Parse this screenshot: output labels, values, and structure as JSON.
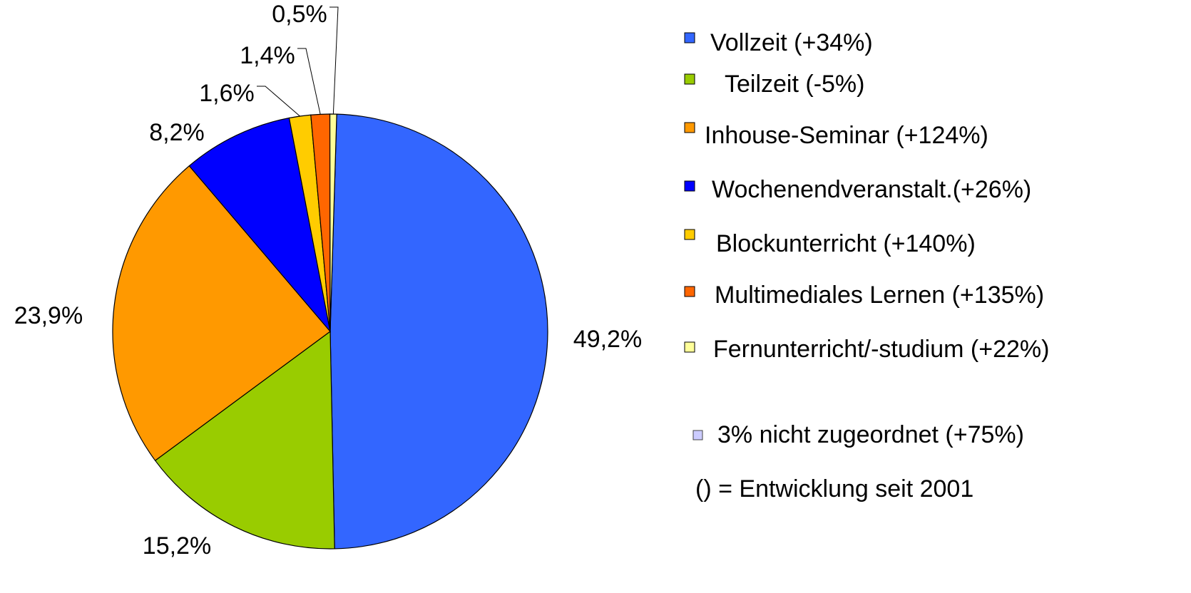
{
  "chart_data": {
    "type": "pie",
    "categories": [
      "Vollzeit (+34%)",
      "Teilzeit (-5%)",
      "Inhouse-Seminar (+124%)",
      "Wochenendveranstalt.(+26%)",
      "Blockunterricht (+140%)",
      "Multimediales Lernen (+135%)",
      "Fernunterricht/-studium (+22%)"
    ],
    "values": [
      49.2,
      15.2,
      23.9,
      8.2,
      1.6,
      1.4,
      0.5
    ],
    "value_labels": [
      "49,2%",
      "15,2%",
      "23,9%",
      "8,2%",
      "1,6%",
      "1,4%",
      "0,5%"
    ],
    "colors": [
      "#3366ff",
      "#99cc00",
      "#ff9900",
      "#0000ff",
      "#ffcc00",
      "#ff6600",
      "#ffff99"
    ],
    "legend_extra": {
      "text": "3% nicht zugeordnet (+75%)",
      "color": "#ccccff"
    },
    "note": "() = Entwicklung seit 2001"
  }
}
